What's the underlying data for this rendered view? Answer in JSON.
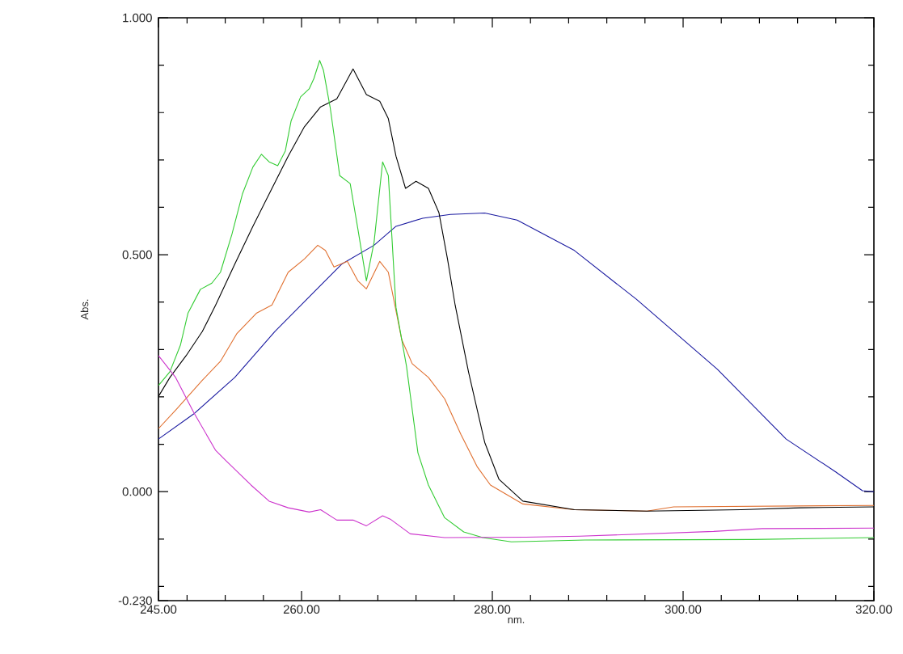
{
  "chart_data": {
    "type": "line",
    "xlabel": "nm.",
    "ylabel": "Abs.",
    "xlim": [
      245,
      320
    ],
    "ylim": [
      -0.23,
      1.0
    ],
    "xticks": [
      {
        "value": 245,
        "label": "245.00"
      },
      {
        "value": 248,
        "label": null
      },
      {
        "value": 252,
        "label": null
      },
      {
        "value": 256,
        "label": null
      },
      {
        "value": 260,
        "label": "260.00"
      },
      {
        "value": 264,
        "label": null
      },
      {
        "value": 268,
        "label": null
      },
      {
        "value": 272,
        "label": null
      },
      {
        "value": 276,
        "label": null
      },
      {
        "value": 280,
        "label": "280.00"
      },
      {
        "value": 284,
        "label": null
      },
      {
        "value": 288,
        "label": null
      },
      {
        "value": 292,
        "label": null
      },
      {
        "value": 296,
        "label": null
      },
      {
        "value": 300,
        "label": "300.00"
      },
      {
        "value": 304,
        "label": null
      },
      {
        "value": 308,
        "label": null
      },
      {
        "value": 312,
        "label": null
      },
      {
        "value": 316,
        "label": null
      },
      {
        "value": 320,
        "label": "320.00"
      }
    ],
    "yticks": [
      {
        "value": -0.23,
        "label": "-0.230"
      },
      {
        "value": -0.2,
        "label": null
      },
      {
        "value": -0.1,
        "label": null
      },
      {
        "value": 0.0,
        "label": "0.000"
      },
      {
        "value": 0.1,
        "label": null
      },
      {
        "value": 0.2,
        "label": null
      },
      {
        "value": 0.3,
        "label": null
      },
      {
        "value": 0.4,
        "label": null
      },
      {
        "value": 0.5,
        "label": "0.500"
      },
      {
        "value": 0.6,
        "label": null
      },
      {
        "value": 0.7,
        "label": null
      },
      {
        "value": 0.8,
        "label": null
      },
      {
        "value": 0.9,
        "label": null
      },
      {
        "value": 1.0,
        "label": "1.000"
      }
    ],
    "grid": false,
    "marker": "none",
    "line_style": "solid",
    "series": [
      {
        "color": "#1a1aa0",
        "x": [
          245,
          248.7,
          253.0,
          257.2,
          261.4,
          264.2,
          267.6,
          269.9,
          272.7,
          275.6,
          279.2,
          282.6,
          288.6,
          295.1,
          303.6,
          310.8,
          315.9,
          318.8,
          320
        ],
        "values": [
          0.111,
          0.164,
          0.241,
          0.338,
          0.423,
          0.48,
          0.52,
          0.56,
          0.577,
          0.585,
          0.588,
          0.573,
          0.509,
          0.406,
          0.258,
          0.111,
          0.043,
          0.002,
          0.0
        ]
      },
      {
        "color": "#e07030",
        "x": [
          245,
          246.8,
          249.6,
          251.5,
          253.2,
          255.3,
          256.9,
          258.6,
          260.3,
          261.7,
          262.5,
          263.4,
          264.8,
          265.9,
          266.8,
          268.2,
          269.1,
          270.5,
          271.6,
          273.3,
          275.0,
          276.7,
          278.4,
          279.8,
          283.2,
          288.6,
          296.2,
          299.0,
          320
        ],
        "values": [
          0.133,
          0.172,
          0.235,
          0.275,
          0.333,
          0.377,
          0.394,
          0.463,
          0.491,
          0.52,
          0.509,
          0.474,
          0.486,
          0.445,
          0.428,
          0.486,
          0.463,
          0.321,
          0.27,
          0.241,
          0.196,
          0.121,
          0.053,
          0.014,
          -0.026,
          -0.038,
          -0.041,
          -0.032,
          -0.029
        ]
      },
      {
        "color": "#000000",
        "x": [
          245,
          246.2,
          247.9,
          249.6,
          251.0,
          253.0,
          254.9,
          256.9,
          258.6,
          260.3,
          262.0,
          263.7,
          265.4,
          266.8,
          268.2,
          269.1,
          269.9,
          270.9,
          272.0,
          273.3,
          274.4,
          275.3,
          276.1,
          277.5,
          279.2,
          280.7,
          283.2,
          288.6,
          296.2,
          306.1,
          312.3,
          320
        ],
        "values": [
          0.201,
          0.241,
          0.287,
          0.338,
          0.394,
          0.48,
          0.56,
          0.64,
          0.708,
          0.77,
          0.812,
          0.829,
          0.892,
          0.838,
          0.824,
          0.787,
          0.708,
          0.64,
          0.655,
          0.64,
          0.589,
          0.491,
          0.394,
          0.253,
          0.104,
          0.026,
          -0.02,
          -0.038,
          -0.041,
          -0.038,
          -0.034,
          -0.032
        ]
      },
      {
        "color": "#33cc33",
        "x": [
          245,
          246.2,
          247.3,
          248.1,
          249.4,
          250.6,
          251.5,
          252.7,
          253.8,
          254.9,
          255.8,
          256.6,
          257.5,
          258.3,
          258.9,
          259.9,
          260.8,
          261.3,
          261.9,
          262.3,
          263.0,
          264.0,
          265.1,
          265.9,
          266.8,
          267.6,
          268.5,
          269.1,
          269.9,
          271.0,
          272.2,
          273.3,
          275.0,
          277.0,
          279.0,
          282.0,
          289.7,
          307.2,
          320
        ],
        "values": [
          0.224,
          0.253,
          0.309,
          0.377,
          0.427,
          0.44,
          0.463,
          0.543,
          0.628,
          0.685,
          0.712,
          0.696,
          0.688,
          0.719,
          0.782,
          0.833,
          0.85,
          0.872,
          0.91,
          0.889,
          0.811,
          0.667,
          0.65,
          0.555,
          0.445,
          0.526,
          0.696,
          0.667,
          0.389,
          0.265,
          0.082,
          0.014,
          -0.055,
          -0.085,
          -0.097,
          -0.106,
          -0.102,
          -0.101,
          -0.097
        ]
      },
      {
        "color": "#cc33cc",
        "x": [
          245,
          246.8,
          248.7,
          251.0,
          252.1,
          254.7,
          256.6,
          258.6,
          260.8,
          262.0,
          263.7,
          265.4,
          266.8,
          268.5,
          269.3,
          271.4,
          275.0,
          283.5,
          289.2,
          303.2,
          308.3,
          320
        ],
        "values": [
          0.287,
          0.241,
          0.167,
          0.087,
          0.065,
          0.014,
          -0.02,
          -0.034,
          -0.043,
          -0.038,
          -0.06,
          -0.06,
          -0.072,
          -0.051,
          -0.058,
          -0.089,
          -0.097,
          -0.096,
          -0.094,
          -0.084,
          -0.078,
          -0.077
        ]
      }
    ]
  }
}
